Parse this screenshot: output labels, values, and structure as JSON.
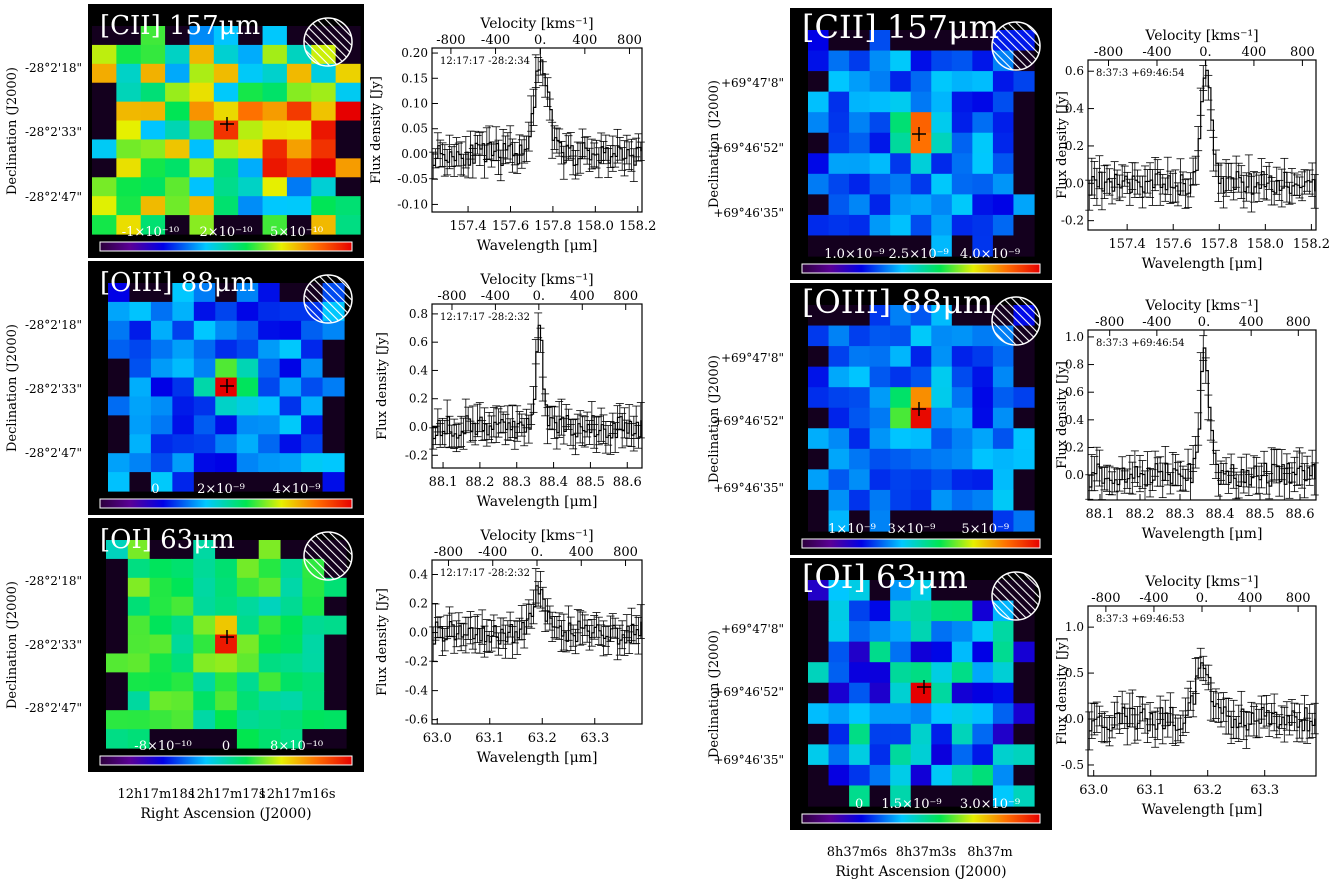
{
  "chart_data": [
    {
      "source": "left",
      "type": "heatmap",
      "ra_ticks": [
        "12h17m18s",
        "12h17m17s",
        "12h17m16s"
      ],
      "ra_label": "Right Ascension (J2000)",
      "dec_ticks": [
        "-28°2'18\"",
        "-28°2'33\"",
        "-28°2'47\""
      ],
      "dec_label": "Declination (J2000)",
      "maps": [
        {
          "title": "[CII] 157μm",
          "colorbar_ticks": [
            "-1×10⁻¹⁰",
            "2×10⁻¹⁰",
            "5×10⁻¹⁰"
          ],
          "peak": "off-center extended emission"
        },
        {
          "title": "[OIII] 88μm",
          "colorbar_ticks": [
            "0",
            "2×10⁻⁹",
            "4×10⁻⁹"
          ],
          "peak": "central compact source"
        },
        {
          "title": "[OI] 63μm",
          "colorbar_ticks": [
            "-8×10⁻¹⁰",
            "0",
            "8×10⁻¹⁰"
          ],
          "peak": "central compact source"
        }
      ]
    },
    {
      "source": "left",
      "type": "line",
      "xlabel": "Wavelength [μm]",
      "ylabel": "Flux density [Jy]",
      "x2label": "Velocity [kms⁻¹]",
      "velocity_ticks": [
        -800,
        -400,
        0,
        400,
        800
      ],
      "spectra": [
        {
          "coord": "12:17:17 -28:2:34",
          "x_range": [
            157.23,
            158.22
          ],
          "y_range": [
            -0.115,
            0.21
          ],
          "x_ticks": [
            157.4,
            157.6,
            157.8,
            158.0,
            158.2
          ],
          "y_ticks": [
            -0.1,
            -0.05,
            0.0,
            0.05,
            0.1,
            0.15,
            0.2
          ],
          "line_center": 157.74,
          "peak": 0.17,
          "width": 0.08
        },
        {
          "coord": "12:17:17 -28:2:32",
          "x_range": [
            88.07,
            88.64
          ],
          "y_range": [
            -0.29,
            0.87
          ],
          "x_ticks": [
            88.1,
            88.2,
            88.3,
            88.4,
            88.5,
            88.6
          ],
          "y_ticks": [
            -0.2,
            0.0,
            0.2,
            0.4,
            0.6,
            0.8
          ],
          "line_center": 88.36,
          "peak": 0.72,
          "width": 0.02
        },
        {
          "coord": "12:17:17 -28:2:32",
          "x_range": [
            62.99,
            63.39
          ],
          "y_range": [
            -0.63,
            0.5
          ],
          "x_ticks": [
            63.0,
            63.1,
            63.2,
            63.3
          ],
          "y_ticks": [
            -0.6,
            -0.4,
            -0.2,
            0.0,
            0.2,
            0.4
          ],
          "line_center": 63.19,
          "peak": 0.25,
          "width": 0.03
        }
      ]
    },
    {
      "source": "right",
      "type": "heatmap",
      "ra_ticks": [
        "8h37m6s",
        "8h37m3s",
        "8h37m"
      ],
      "ra_label": "Right Ascension (J2000)",
      "dec_ticks": [
        "+69°47'8\"",
        "+69°46'52\"",
        "+69°46'35\""
      ],
      "dec_label": "Declination (J2000)",
      "maps": [
        {
          "title": "[CII] 157μm",
          "colorbar_ticks": [
            "1.0×10⁻⁹",
            "2.5×10⁻⁹",
            "4.0×10⁻⁹"
          ],
          "peak": "central compact source"
        },
        {
          "title": "[OIII] 88μm",
          "colorbar_ticks": [
            "1×10⁻⁹",
            "3×10⁻⁹",
            "5×10⁻⁹"
          ],
          "peak": "central compact source"
        },
        {
          "title": "[OI] 63μm",
          "colorbar_ticks": [
            "0",
            "1.5×10⁻⁹",
            "3.0×10⁻⁹"
          ],
          "peak": "compact source"
        }
      ]
    },
    {
      "source": "right",
      "type": "line",
      "xlabel": "Wavelength [μm]",
      "ylabel": "Flux density [Jy]",
      "x2label": "Velocity [kms⁻¹]",
      "velocity_ticks": [
        -800,
        -400,
        0,
        400,
        800
      ],
      "spectra": [
        {
          "coord": "8:37:3 +69:46:54",
          "x_range": [
            157.23,
            158.22
          ],
          "y_range": [
            -0.25,
            0.66
          ],
          "x_ticks": [
            157.4,
            157.6,
            157.8,
            158.0,
            158.2
          ],
          "y_ticks": [
            -0.2,
            0.0,
            0.2,
            0.4,
            0.6
          ],
          "line_center": 157.74,
          "peak": 0.6,
          "width": 0.05
        },
        {
          "coord": "8:37:3 +69:46:54",
          "x_range": [
            88.07,
            88.64
          ],
          "y_range": [
            -0.18,
            1.05
          ],
          "x_ticks": [
            88.1,
            88.2,
            88.3,
            88.4,
            88.5,
            88.6
          ],
          "y_ticks": [
            0.0,
            0.2,
            0.4,
            0.6,
            0.8,
            1.0
          ],
          "line_center": 88.36,
          "peak": 0.9,
          "width": 0.025
        },
        {
          "coord": "8:37:3 +69:46:53",
          "x_range": [
            62.99,
            63.39
          ],
          "y_range": [
            -0.62,
            1.23
          ],
          "x_ticks": [
            63.0,
            63.1,
            63.2,
            63.3
          ],
          "y_ticks": [
            -0.5,
            0.0,
            0.5,
            1.0
          ],
          "line_center": 63.19,
          "peak": 0.5,
          "width": 0.03
        }
      ]
    }
  ]
}
